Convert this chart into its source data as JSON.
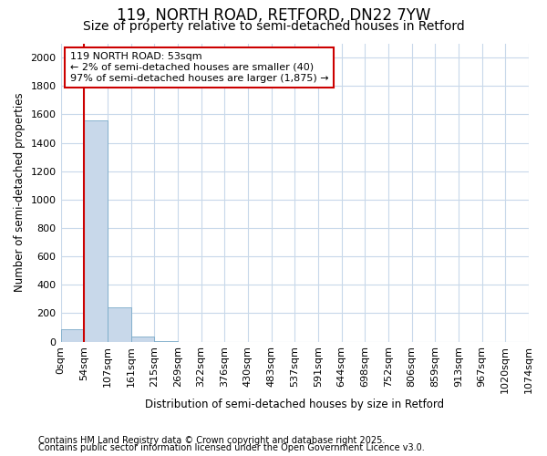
{
  "title": "119, NORTH ROAD, RETFORD, DN22 7YW",
  "subtitle": "Size of property relative to semi-detached houses in Retford",
  "xlabel": "Distribution of semi-detached houses by size in Retford",
  "ylabel": "Number of semi-detached properties",
  "footnote1": "Contains HM Land Registry data © Crown copyright and database right 2025.",
  "footnote2": "Contains public sector information licensed under the Open Government Licence v3.0.",
  "bin_labels": [
    "0sqm",
    "54sqm",
    "107sqm",
    "161sqm",
    "215sqm",
    "269sqm",
    "322sqm",
    "376sqm",
    "430sqm",
    "483sqm",
    "537sqm",
    "591sqm",
    "644sqm",
    "698sqm",
    "752sqm",
    "806sqm",
    "859sqm",
    "913sqm",
    "967sqm",
    "1020sqm",
    "1074sqm"
  ],
  "bar_values": [
    90,
    1560,
    240,
    35,
    5,
    0,
    0,
    0,
    0,
    0,
    0,
    0,
    0,
    0,
    0,
    0,
    0,
    0,
    0,
    0
  ],
  "bar_color": "#c8d8ea",
  "bar_edge_color": "#7aaac8",
  "property_line_x": 1.0,
  "property_line_color": "#cc0000",
  "annotation_text": "119 NORTH ROAD: 53sqm\n← 2% of semi-detached houses are smaller (40)\n97% of semi-detached houses are larger (1,875) →",
  "annotation_box_color": "#cc0000",
  "ylim": [
    0,
    2100
  ],
  "yticks": [
    0,
    200,
    400,
    600,
    800,
    1000,
    1200,
    1400,
    1600,
    1800,
    2000
  ],
  "background_color": "#ffffff",
  "plot_bg_color": "#ffffff",
  "grid_color": "#c8d8ea",
  "title_fontsize": 12,
  "subtitle_fontsize": 10,
  "label_fontsize": 8.5,
  "tick_fontsize": 8,
  "annot_fontsize": 8,
  "footnote_fontsize": 7
}
